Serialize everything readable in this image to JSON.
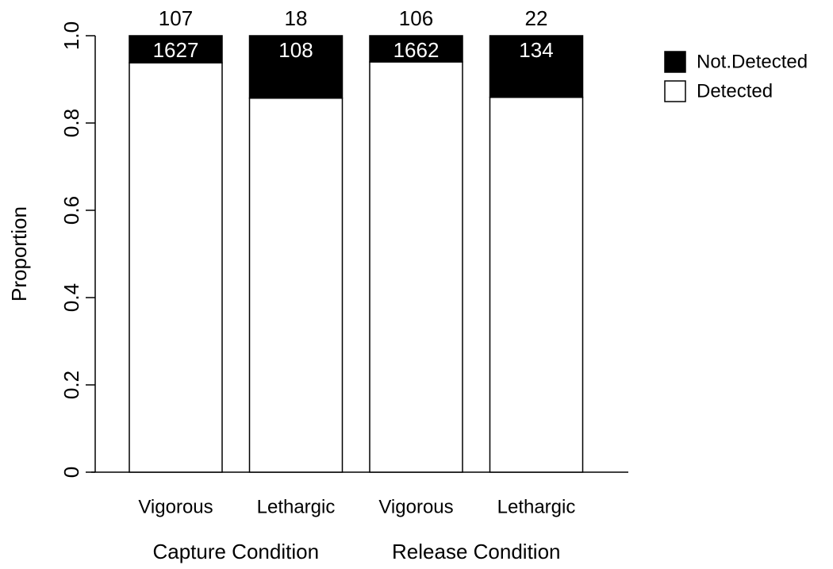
{
  "chart_data": {
    "type": "stacked_bar",
    "y_label": "Proportion",
    "categories": [
      "Vigorous",
      "Lethargic",
      "Vigorous",
      "Lethargic"
    ],
    "groups": [
      "Capture Condition",
      "Release Condition"
    ],
    "series": [
      {
        "name": "Detected",
        "color": "#ffffff",
        "values": [
          0.938,
          0.857,
          0.94,
          0.859
        ]
      },
      {
        "name": "Not.Detected",
        "color": "#000000",
        "values": [
          0.062,
          0.143,
          0.06,
          0.141
        ]
      }
    ],
    "top_labels": [
      107,
      18,
      106,
      22
    ],
    "inside_labels": [
      1627,
      108,
      1662,
      134
    ],
    "ylim": [
      0,
      1
    ],
    "yticks": [
      0,
      0.2,
      0.4,
      0.6,
      0.8,
      {
        "value": 1,
        "label": "1.0"
      }
    ],
    "legend": "top-right"
  }
}
